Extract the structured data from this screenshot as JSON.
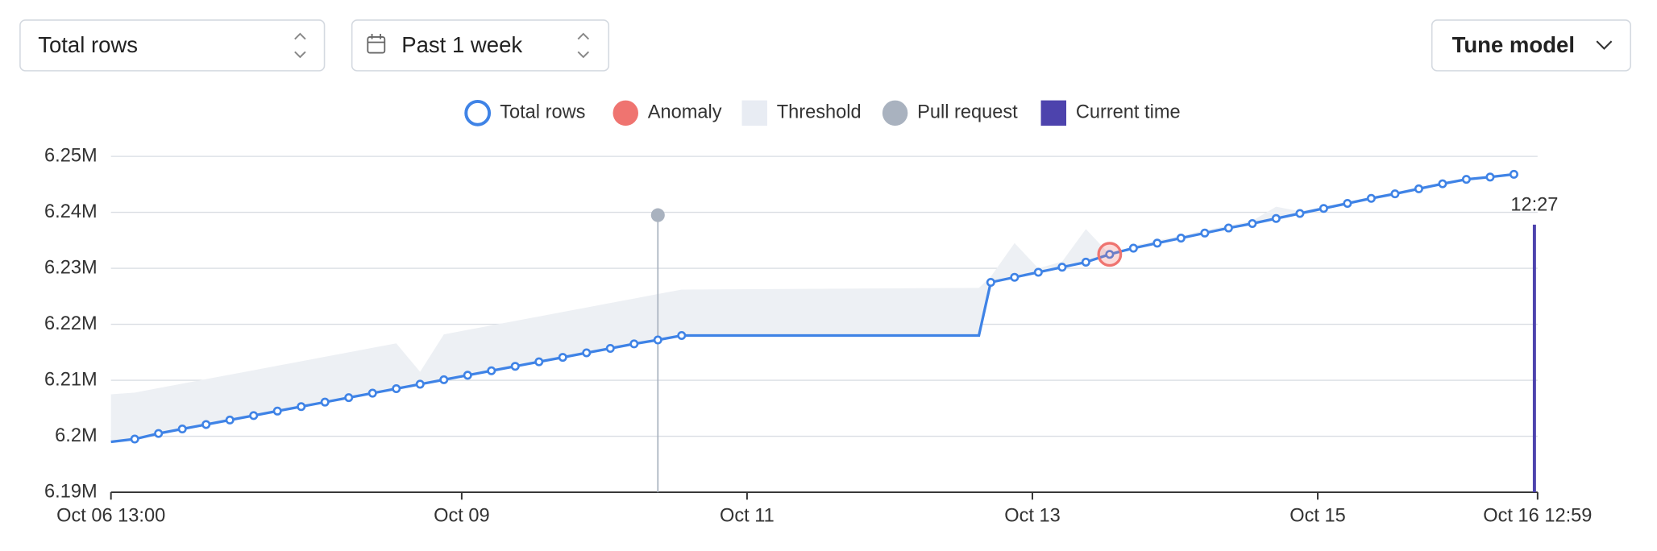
{
  "controls": {
    "metric": "Total rows",
    "range": "Past 1 week",
    "tune": "Tune model"
  },
  "chart_data": {
    "type": "line",
    "legend": [
      {
        "name": "Total rows",
        "color": "#3f83e6",
        "shape": "ring"
      },
      {
        "name": "Anomaly",
        "color": "#ef7470",
        "shape": "dot"
      },
      {
        "name": "Threshold",
        "color": "#e8ecf3",
        "shape": "square"
      },
      {
        "name": "Pull request",
        "color": "#a9b2bf",
        "shape": "dot"
      },
      {
        "name": "Current time",
        "color": "#4d43ad",
        "shape": "square"
      }
    ],
    "x": [
      "Oct 06 13:00",
      "Oct 06 17:00",
      "Oct 06 21:00",
      "Oct 07 01:00",
      "Oct 07 05:00",
      "Oct 07 09:00",
      "Oct 07 13:00",
      "Oct 07 17:00",
      "Oct 07 21:00",
      "Oct 08 01:00",
      "Oct 08 05:00",
      "Oct 08 09:00",
      "Oct 08 13:00",
      "Oct 08 17:00",
      "Oct 08 21:00",
      "Oct 09 01:00",
      "Oct 09 05:00",
      "Oct 09 09:00",
      "Oct 09 13:00",
      "Oct 09 17:00",
      "Oct 09 21:00",
      "Oct 10 01:00",
      "Oct 10 05:00",
      "Oct 10 09:00",
      "Oct 10 13:00",
      "Oct 12 15:00",
      "Oct 12 17:00",
      "Oct 12 21:00",
      "Oct 13 01:00",
      "Oct 13 05:00",
      "Oct 13 09:00",
      "Oct 13 13:00",
      "Oct 13 17:00",
      "Oct 13 21:00",
      "Oct 14 01:00",
      "Oct 14 05:00",
      "Oct 14 09:00",
      "Oct 14 13:00",
      "Oct 14 17:00",
      "Oct 14 21:00",
      "Oct 15 01:00",
      "Oct 15 05:00",
      "Oct 15 09:00",
      "Oct 15 13:00",
      "Oct 15 17:00",
      "Oct 15 21:00",
      "Oct 16 01:00",
      "Oct 16 05:00",
      "Oct 16 09:00"
    ],
    "series": [
      {
        "name": "Total rows",
        "color": "#3f83e6",
        "values": [
          6199000,
          6199500,
          6200500,
          6201300,
          6202100,
          6202900,
          6203700,
          6204500,
          6205300,
          6206100,
          6206900,
          6207700,
          6208500,
          6209300,
          6210100,
          6210900,
          6211700,
          6212500,
          6213300,
          6214100,
          6214900,
          6215700,
          6216500,
          6217200,
          6218000,
          6218000,
          6227500,
          6228400,
          6229300,
          6230200,
          6231100,
          6232500,
          6233600,
          6234500,
          6235400,
          6236300,
          6237200,
          6238000,
          6238900,
          6239800,
          6240700,
          6241600,
          6242500,
          6243300,
          6244200,
          6245100,
          6245900,
          6246300,
          6246800
        ]
      }
    ],
    "threshold": {
      "name": "Threshold",
      "color": "#edf0f4",
      "upper": [
        6207500,
        6207800,
        6208600,
        6209400,
        6210200,
        6211000,
        6211800,
        6212600,
        6213400,
        6214200,
        6215000,
        6215800,
        6216600,
        6211500,
        6218200,
        6219000,
        6219800,
        6220600,
        6221400,
        6222200,
        6223000,
        6223800,
        6224600,
        6225400,
        6226200,
        6226500,
        6228500,
        6234500,
        6230000,
        6231200,
        6237000,
        6232500,
        6234000,
        6235000,
        6235800,
        6236800,
        6237600,
        6238500,
        6241000,
        6240200,
        6241000,
        6241900,
        6242800,
        6243600,
        6244500,
        6245300,
        6246100,
        6246500,
        6247000
      ]
    },
    "anomaly": {
      "x": "Oct 13 13:00",
      "value": 6232500
    },
    "pull_request": {
      "x": "Oct 10 09:00",
      "value": 6239500
    },
    "current_time": {
      "x": "Oct 16 12:27",
      "value": 6237800,
      "label": "12:27"
    },
    "xlim": [
      "Oct 06 13:00",
      "Oct 16 12:59"
    ],
    "xticks": [
      "Oct 06 13:00",
      "Oct 09",
      "Oct 11",
      "Oct 13",
      "Oct 15",
      "Oct 16 12:59"
    ],
    "ylim": [
      6190000,
      6250000
    ],
    "yticks": [
      {
        "value": 6190000,
        "label": "6.19M"
      },
      {
        "value": 6200000,
        "label": "6.2M"
      },
      {
        "value": 6210000,
        "label": "6.21M"
      },
      {
        "value": 6220000,
        "label": "6.22M"
      },
      {
        "value": 6230000,
        "label": "6.23M"
      },
      {
        "value": 6240000,
        "label": "6.24M"
      },
      {
        "value": 6250000,
        "label": "6.25M"
      }
    ],
    "grid": true
  }
}
